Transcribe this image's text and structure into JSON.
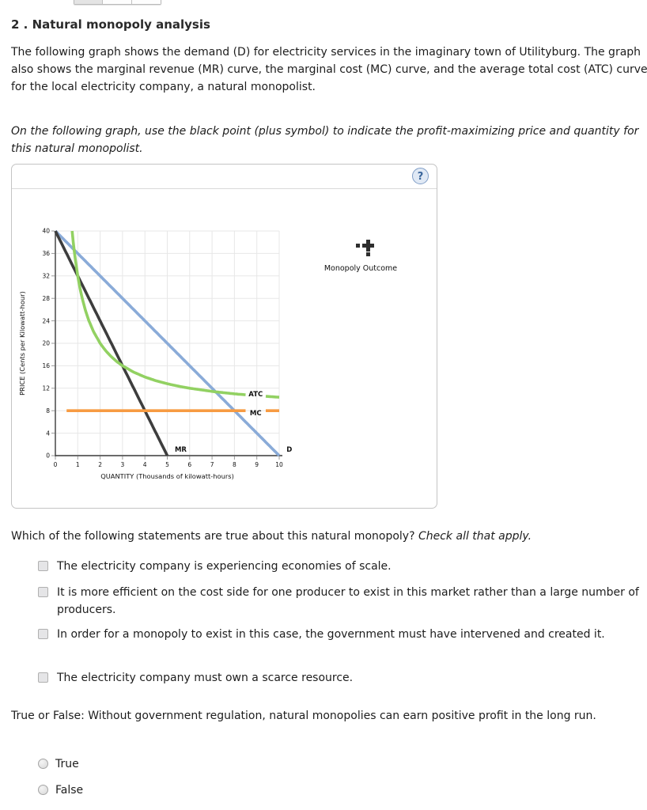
{
  "page": {
    "heading": "2 . Natural monopoly analysis",
    "intro": "The following graph shows the demand (D) for electricity services in the imaginary town of Utilityburg. The graph also shows the marginal revenue (MR) curve, the marginal cost (MC) curve, and the average total cost (ATC) curve for the local electricity company, a natural monopolist.",
    "instruction": "On the following graph, use the black point (plus symbol) to indicate the profit-maximizing price and quantity for this natural monopolist."
  },
  "graph_panel": {
    "help_label": "?",
    "legend": {
      "symbol": "plus-point",
      "label": "Monopoly Outcome"
    }
  },
  "chart_data": {
    "type": "line",
    "xlabel": "QUANTITY (Thousands of kilowatt-hours)",
    "ylabel": "PRICE (Cents per Kilowatt-hour)",
    "xlim": [
      0,
      10
    ],
    "ylim": [
      0,
      40
    ],
    "x_ticks": [
      0,
      1,
      2,
      3,
      4,
      5,
      6,
      7,
      8,
      9,
      10
    ],
    "y_ticks": [
      0,
      4,
      8,
      12,
      16,
      20,
      24,
      28,
      32,
      36,
      40
    ],
    "grid": true,
    "series": [
      {
        "name": "D",
        "color": "#8aabd8",
        "points": [
          [
            0,
            40
          ],
          [
            10,
            0
          ]
        ]
      },
      {
        "name": "MR",
        "color": "#3d3d3d",
        "points": [
          [
            0,
            40
          ],
          [
            5,
            0
          ]
        ]
      },
      {
        "name": "ATC",
        "color": "#92d162",
        "formula": "ATC = 8 + 24/Q",
        "points": [
          [
            0.75,
            40
          ],
          [
            0.8,
            38
          ],
          [
            0.85,
            36.2
          ],
          [
            0.9,
            34.67
          ],
          [
            1,
            32
          ],
          [
            1.1,
            29.82
          ],
          [
            1.2,
            28
          ],
          [
            1.35,
            25.78
          ],
          [
            1.5,
            24
          ],
          [
            1.7,
            22.12
          ],
          [
            2,
            20
          ],
          [
            2.25,
            18.67
          ],
          [
            2.5,
            17.6
          ],
          [
            2.75,
            16.73
          ],
          [
            3,
            16
          ],
          [
            3.5,
            14.86
          ],
          [
            4,
            14
          ],
          [
            4.5,
            13.33
          ],
          [
            5,
            12.8
          ],
          [
            5.5,
            12.36
          ],
          [
            6,
            12
          ],
          [
            7,
            11.43
          ],
          [
            8,
            11
          ],
          [
            9,
            10.67
          ],
          [
            10,
            10.4
          ]
        ],
        "label_gap_x": [
          8.52,
          9.38
        ]
      },
      {
        "name": "MC",
        "color": "#f79b42",
        "points": [
          [
            0.5,
            8
          ],
          [
            10,
            8
          ]
        ],
        "label_gap_x": [
          8.52,
          9.38
        ]
      }
    ],
    "curve_labels": [
      {
        "text": "ATC",
        "x": 8.95,
        "y": 11.0
      },
      {
        "text": "MC",
        "x": 8.95,
        "y": 7.6
      },
      {
        "text": "MR",
        "x": 5.6,
        "y": 1.1
      },
      {
        "text": "D",
        "x": 10.45,
        "y": 1.1
      }
    ]
  },
  "checkbox_question": {
    "prompt": "Which of the following statements are true about this natural monopoly?",
    "prompt_italic": "Check all that apply.",
    "options": [
      "The electricity company is experiencing economies of scale.",
      "It is more efficient on the cost side for one producer to exist in this market rather than a large number of producers.",
      "In order for a monopoly to exist in this case, the government must have intervened and created it.",
      "The electricity company must own a scarce resource."
    ]
  },
  "tf_question": {
    "prompt": "True or False: Without government regulation, natural monopolies can earn positive profit in the long run.",
    "options": [
      "True",
      "False"
    ]
  }
}
